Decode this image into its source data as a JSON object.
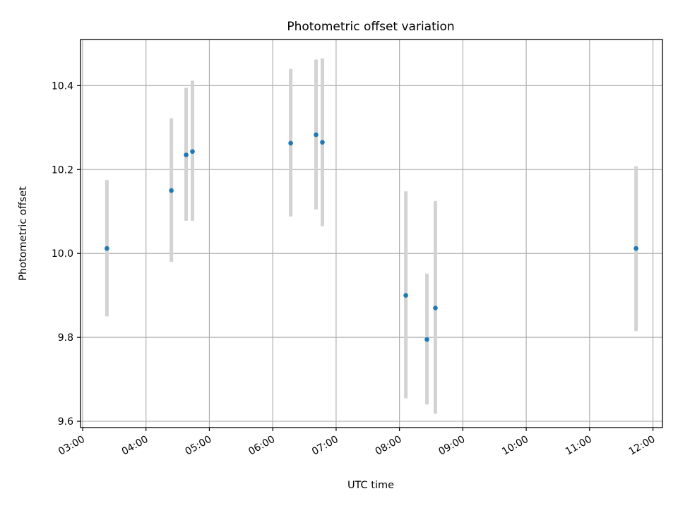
{
  "chart_data": {
    "type": "scatter",
    "title": "Photometric offset variation",
    "xlabel": "UTC time",
    "ylabel": "Photometric offset",
    "xlim": [
      "02:58",
      "12:09"
    ],
    "ylim": [
      9.585,
      10.51
    ],
    "x_ticks": [
      "03:00",
      "04:00",
      "05:00",
      "06:00",
      "07:00",
      "08:00",
      "09:00",
      "10:00",
      "11:00",
      "12:00"
    ],
    "y_ticks": [
      "9.6",
      "9.8",
      "10.0",
      "10.2",
      "10.4"
    ],
    "grid": true,
    "marker_color": "#1f77b4",
    "errorbar_color": "#d3d3d3",
    "points": [
      {
        "x": "03:23",
        "y": 10.012,
        "err_low": 9.85,
        "err_high": 10.175
      },
      {
        "x": "04:24",
        "y": 10.15,
        "err_low": 9.98,
        "err_high": 10.322
      },
      {
        "x": "04:38",
        "y": 10.235,
        "err_low": 10.078,
        "err_high": 10.395
      },
      {
        "x": "04:44",
        "y": 10.243,
        "err_low": 10.078,
        "err_high": 10.412
      },
      {
        "x": "06:17",
        "y": 10.263,
        "err_low": 10.088,
        "err_high": 10.44
      },
      {
        "x": "06:41",
        "y": 10.283,
        "err_low": 10.105,
        "err_high": 10.462
      },
      {
        "x": "06:47",
        "y": 10.265,
        "err_low": 10.065,
        "err_high": 10.465
      },
      {
        "x": "08:06",
        "y": 9.9,
        "err_low": 9.655,
        "err_high": 10.148
      },
      {
        "x": "08:26",
        "y": 9.795,
        "err_low": 9.64,
        "err_high": 9.952
      },
      {
        "x": "08:34",
        "y": 9.87,
        "err_low": 9.618,
        "err_high": 10.125
      },
      {
        "x": "11:44",
        "y": 10.012,
        "err_low": 9.815,
        "err_high": 10.208
      }
    ]
  }
}
